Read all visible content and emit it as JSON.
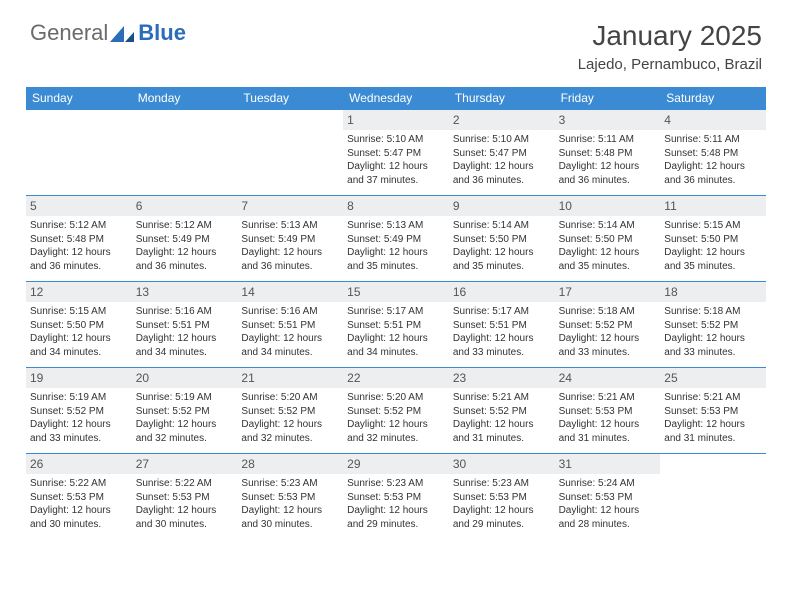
{
  "logo": {
    "general": "General",
    "blue": "Blue"
  },
  "title": "January 2025",
  "subtitle": "Lajedo, Pernambuco, Brazil",
  "colors": {
    "header_bg": "#3b8bd4",
    "daynum_bg": "#eceeef",
    "title_color": "#444444",
    "logo_blue": "#2a6db8",
    "logo_gray": "#6b6b6b",
    "cell_border": "#3b8bd4"
  },
  "dayLabels": [
    "Sunday",
    "Monday",
    "Tuesday",
    "Wednesday",
    "Thursday",
    "Friday",
    "Saturday"
  ],
  "cells": [
    null,
    null,
    null,
    {
      "n": "1",
      "sr": "5:10 AM",
      "ss": "5:47 PM",
      "dl": "12 hours and 37 minutes."
    },
    {
      "n": "2",
      "sr": "5:10 AM",
      "ss": "5:47 PM",
      "dl": "12 hours and 36 minutes."
    },
    {
      "n": "3",
      "sr": "5:11 AM",
      "ss": "5:48 PM",
      "dl": "12 hours and 36 minutes."
    },
    {
      "n": "4",
      "sr": "5:11 AM",
      "ss": "5:48 PM",
      "dl": "12 hours and 36 minutes."
    },
    {
      "n": "5",
      "sr": "5:12 AM",
      "ss": "5:48 PM",
      "dl": "12 hours and 36 minutes."
    },
    {
      "n": "6",
      "sr": "5:12 AM",
      "ss": "5:49 PM",
      "dl": "12 hours and 36 minutes."
    },
    {
      "n": "7",
      "sr": "5:13 AM",
      "ss": "5:49 PM",
      "dl": "12 hours and 36 minutes."
    },
    {
      "n": "8",
      "sr": "5:13 AM",
      "ss": "5:49 PM",
      "dl": "12 hours and 35 minutes."
    },
    {
      "n": "9",
      "sr": "5:14 AM",
      "ss": "5:50 PM",
      "dl": "12 hours and 35 minutes."
    },
    {
      "n": "10",
      "sr": "5:14 AM",
      "ss": "5:50 PM",
      "dl": "12 hours and 35 minutes."
    },
    {
      "n": "11",
      "sr": "5:15 AM",
      "ss": "5:50 PM",
      "dl": "12 hours and 35 minutes."
    },
    {
      "n": "12",
      "sr": "5:15 AM",
      "ss": "5:50 PM",
      "dl": "12 hours and 34 minutes."
    },
    {
      "n": "13",
      "sr": "5:16 AM",
      "ss": "5:51 PM",
      "dl": "12 hours and 34 minutes."
    },
    {
      "n": "14",
      "sr": "5:16 AM",
      "ss": "5:51 PM",
      "dl": "12 hours and 34 minutes."
    },
    {
      "n": "15",
      "sr": "5:17 AM",
      "ss": "5:51 PM",
      "dl": "12 hours and 34 minutes."
    },
    {
      "n": "16",
      "sr": "5:17 AM",
      "ss": "5:51 PM",
      "dl": "12 hours and 33 minutes."
    },
    {
      "n": "17",
      "sr": "5:18 AM",
      "ss": "5:52 PM",
      "dl": "12 hours and 33 minutes."
    },
    {
      "n": "18",
      "sr": "5:18 AM",
      "ss": "5:52 PM",
      "dl": "12 hours and 33 minutes."
    },
    {
      "n": "19",
      "sr": "5:19 AM",
      "ss": "5:52 PM",
      "dl": "12 hours and 33 minutes."
    },
    {
      "n": "20",
      "sr": "5:19 AM",
      "ss": "5:52 PM",
      "dl": "12 hours and 32 minutes."
    },
    {
      "n": "21",
      "sr": "5:20 AM",
      "ss": "5:52 PM",
      "dl": "12 hours and 32 minutes."
    },
    {
      "n": "22",
      "sr": "5:20 AM",
      "ss": "5:52 PM",
      "dl": "12 hours and 32 minutes."
    },
    {
      "n": "23",
      "sr": "5:21 AM",
      "ss": "5:52 PM",
      "dl": "12 hours and 31 minutes."
    },
    {
      "n": "24",
      "sr": "5:21 AM",
      "ss": "5:53 PM",
      "dl": "12 hours and 31 minutes."
    },
    {
      "n": "25",
      "sr": "5:21 AM",
      "ss": "5:53 PM",
      "dl": "12 hours and 31 minutes."
    },
    {
      "n": "26",
      "sr": "5:22 AM",
      "ss": "5:53 PM",
      "dl": "12 hours and 30 minutes."
    },
    {
      "n": "27",
      "sr": "5:22 AM",
      "ss": "5:53 PM",
      "dl": "12 hours and 30 minutes."
    },
    {
      "n": "28",
      "sr": "5:23 AM",
      "ss": "5:53 PM",
      "dl": "12 hours and 30 minutes."
    },
    {
      "n": "29",
      "sr": "5:23 AM",
      "ss": "5:53 PM",
      "dl": "12 hours and 29 minutes."
    },
    {
      "n": "30",
      "sr": "5:23 AM",
      "ss": "5:53 PM",
      "dl": "12 hours and 29 minutes."
    },
    {
      "n": "31",
      "sr": "5:24 AM",
      "ss": "5:53 PM",
      "dl": "12 hours and 28 minutes."
    },
    null
  ],
  "labels": {
    "sunrise_prefix": "Sunrise: ",
    "sunset_prefix": "Sunset: ",
    "daylight_prefix": "Daylight: "
  }
}
